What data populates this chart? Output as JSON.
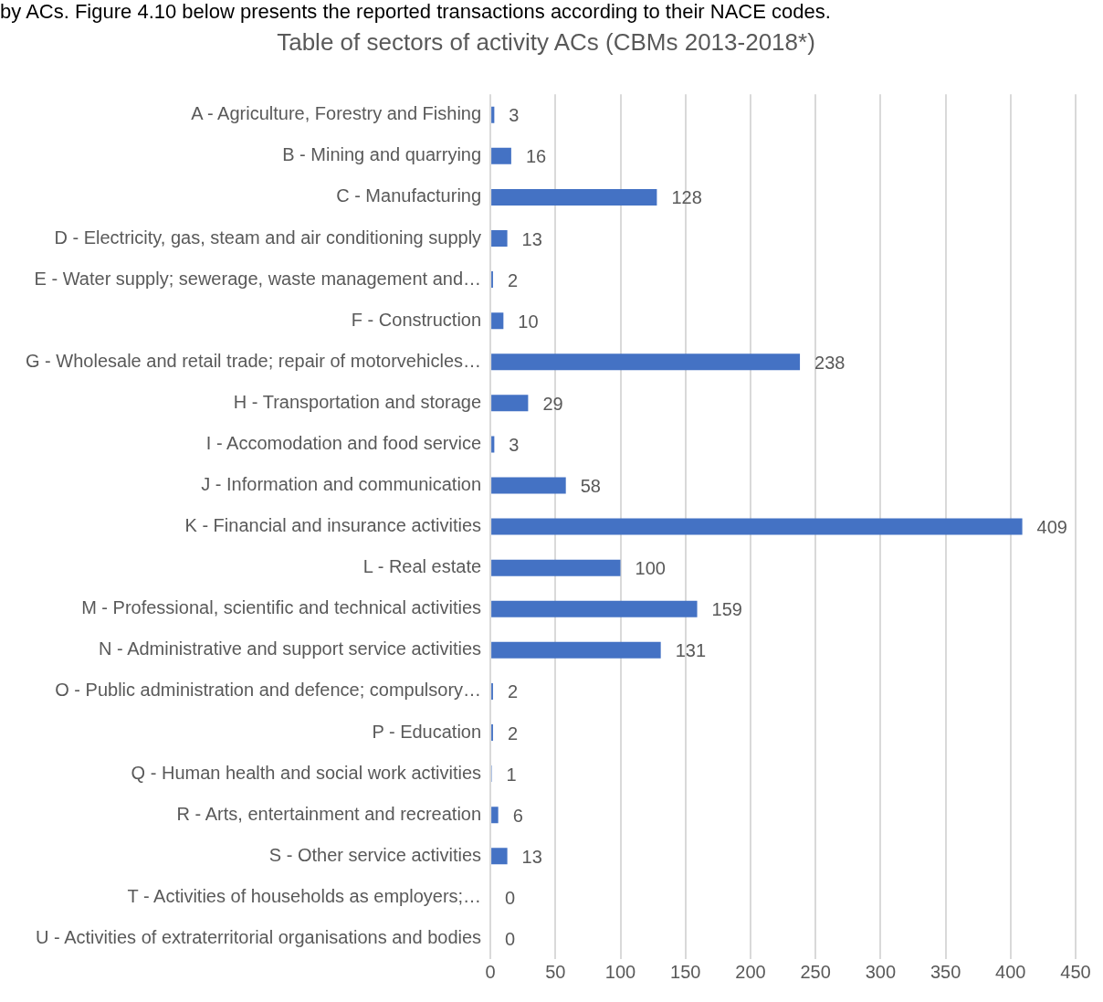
{
  "chart_data": {
    "type": "bar",
    "orientation": "horizontal",
    "title": "Table of sectors of activity ACs (CBMs 2013-2018*)",
    "annotations": [
      "by ACs. Figure 4.10 below presents the reported transactions according to their NACE codes."
    ],
    "categories": [
      "A - Agriculture, Forestry and Fishing",
      "B - Mining and quarrying",
      "C - Manufacturing",
      "D - Electricity, gas, steam and air conditioning supply",
      "E - Water supply; sewerage, waste management and…",
      "F - Construction",
      "G - Wholesale and retail trade; repair of motorvehicles…",
      "H - Transportation and storage",
      "I - Accomodation and food service",
      "J - Information and communication",
      "K - Financial and insurance activities",
      "L - Real estate",
      "M - Professional, scientific and technical activities",
      "N - Administrative and support service activities",
      "O - Public administration and defence; compulsory…",
      "P - Education",
      "Q - Human health and social work activities",
      "R - Arts, entertainment and recreation",
      "S - Other service activities",
      "T - Activities of households as employers;…",
      "U - Activities of extraterritorial organisations and bodies"
    ],
    "values": [
      3,
      16,
      128,
      13,
      2,
      10,
      238,
      29,
      3,
      58,
      409,
      100,
      159,
      131,
      2,
      2,
      1,
      6,
      13,
      0,
      0
    ],
    "color": "#4472c4",
    "data_labels": true,
    "grid": "x",
    "legend": false,
    "xlim": [
      0,
      450
    ],
    "xticks": [
      0,
      50,
      100,
      150,
      200,
      250,
      300,
      350,
      400,
      450
    ]
  }
}
